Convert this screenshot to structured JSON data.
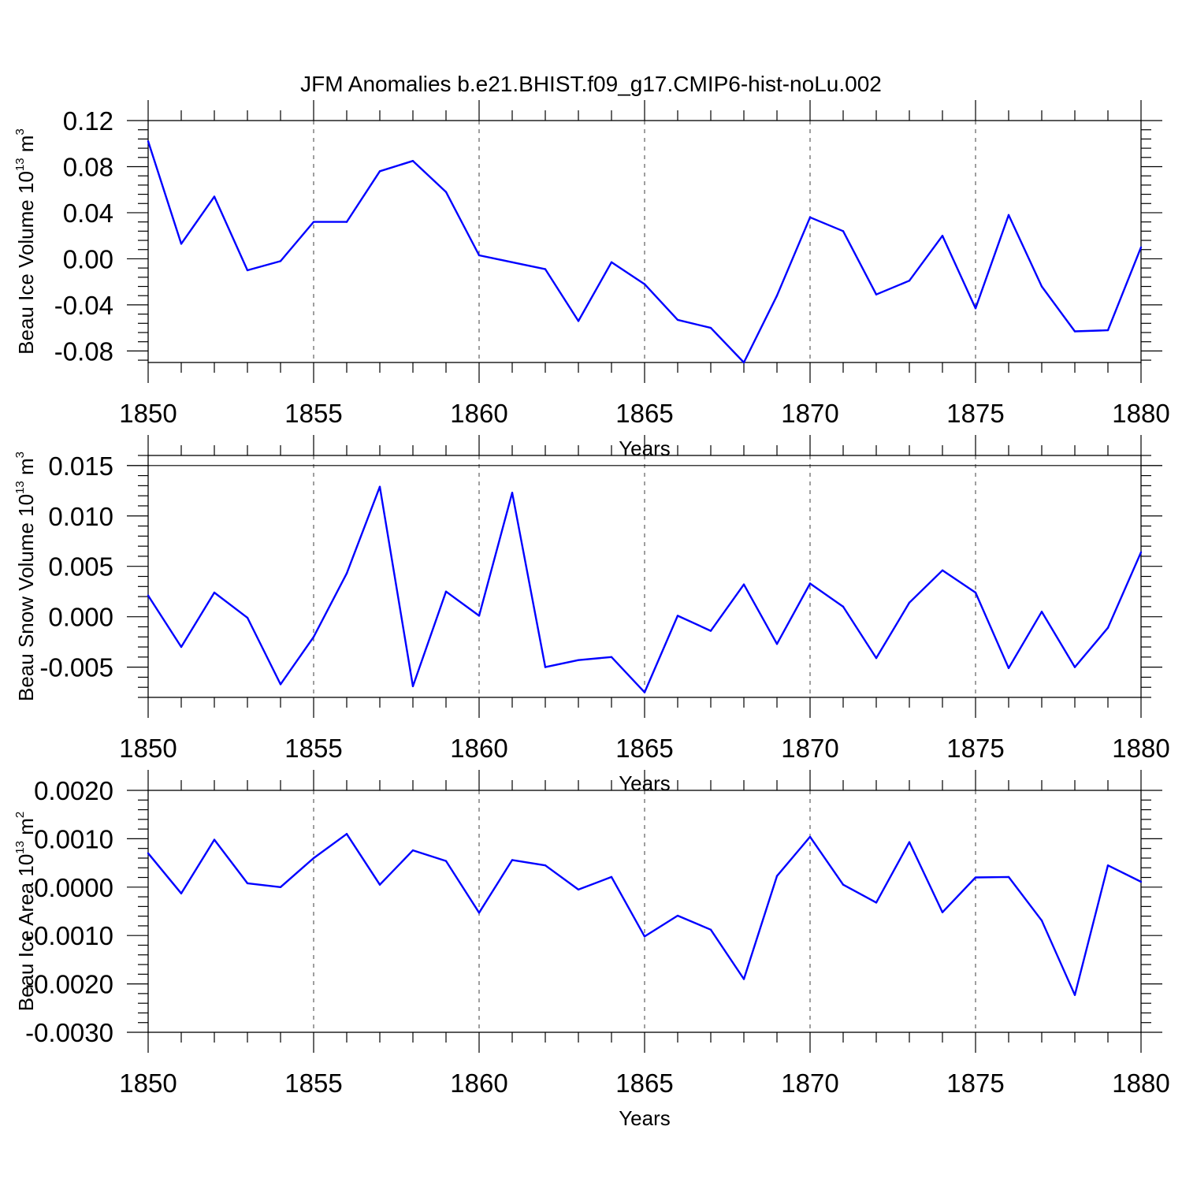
{
  "title": "JFM Anomalies b.e21.BHIST.f09_g17.CMIP6-hist-noLu.002",
  "chart_data": [
    {
      "type": "line",
      "ylabel_main": "Beau Ice Volume 10",
      "ylabel_sup1": "13",
      "ylabel_mid": " m",
      "ylabel_sup2": "3",
      "xlabel": "Years",
      "xlim": [
        1850,
        1880
      ],
      "ylim": [
        -0.09,
        0.12
      ],
      "xticks": [
        1850,
        1855,
        1860,
        1865,
        1870,
        1875,
        1880
      ],
      "yticks": [
        -0.08,
        -0.04,
        0.0,
        0.04,
        0.08,
        0.12
      ],
      "ytick_labels": [
        "-0.08",
        "-0.04",
        "0.00",
        "0.04",
        "0.08",
        "0.12"
      ],
      "grid": "vertical-dashed",
      "color": "#0000ff",
      "x": [
        1850,
        1851,
        1852,
        1853,
        1854,
        1855,
        1856,
        1857,
        1858,
        1859,
        1860,
        1861,
        1862,
        1863,
        1864,
        1865,
        1866,
        1867,
        1868,
        1869,
        1870,
        1871,
        1872,
        1873,
        1874,
        1875,
        1876,
        1877,
        1878,
        1879,
        1880
      ],
      "y": [
        0.102,
        0.013,
        0.054,
        -0.01,
        -0.002,
        0.032,
        0.032,
        0.076,
        0.085,
        0.058,
        0.003,
        -0.003,
        -0.009,
        -0.054,
        -0.003,
        -0.022,
        -0.053,
        -0.06,
        -0.09,
        -0.032,
        0.036,
        0.024,
        -0.031,
        -0.019,
        0.02,
        -0.043,
        0.038,
        -0.024,
        -0.063,
        -0.062,
        0.01
      ]
    },
    {
      "type": "line",
      "ylabel_main": "Beau Snow Volume 10",
      "ylabel_sup1": "13",
      "ylabel_mid": " m",
      "ylabel_sup2": "3",
      "xlabel": "Years",
      "xlim": [
        1850,
        1880
      ],
      "ylim": [
        -0.008,
        0.016
      ],
      "xticks": [
        1850,
        1855,
        1860,
        1865,
        1870,
        1875,
        1880
      ],
      "yticks": [
        -0.005,
        0.0,
        0.005,
        0.01,
        0.015
      ],
      "ytick_labels": [
        "-0.005",
        "0.000",
        "0.005",
        "0.010",
        "0.015"
      ],
      "grid": "vertical-dashed",
      "color": "#0000ff",
      "x": [
        1850,
        1851,
        1852,
        1853,
        1854,
        1855,
        1856,
        1857,
        1858,
        1859,
        1860,
        1861,
        1862,
        1863,
        1864,
        1865,
        1866,
        1867,
        1868,
        1869,
        1870,
        1871,
        1872,
        1873,
        1874,
        1875,
        1876,
        1877,
        1878,
        1879,
        1880
      ],
      "y": [
        0.0021,
        -0.003,
        0.0024,
        -0.0001,
        -0.0067,
        -0.002,
        0.0043,
        0.0129,
        -0.0069,
        0.0025,
        0.0001,
        0.0123,
        -0.005,
        -0.0043,
        -0.004,
        -0.0075,
        0.0001,
        -0.0014,
        0.0032,
        -0.0027,
        0.0033,
        0.001,
        -0.0041,
        0.0014,
        0.0046,
        0.0024,
        -0.0051,
        0.0005,
        -0.005,
        -0.0011,
        0.0064
      ]
    },
    {
      "type": "line",
      "ylabel_main": "Beau Ice Area 10",
      "ylabel_sup1": "13",
      "ylabel_mid": " m",
      "ylabel_sup2": "2",
      "xlabel": "Years",
      "xlim": [
        1850,
        1880
      ],
      "ylim": [
        -0.003,
        0.002
      ],
      "xticks": [
        1850,
        1855,
        1860,
        1865,
        1870,
        1875,
        1880
      ],
      "yticks": [
        -0.003,
        -0.002,
        -0.001,
        0.0,
        0.001,
        0.002
      ],
      "ytick_labels": [
        "-0.0030",
        "-0.0020",
        "-0.0010",
        "0.0000",
        "0.0010",
        "0.0020"
      ],
      "grid": "vertical-dashed",
      "color": "#0000ff",
      "x": [
        1850,
        1851,
        1852,
        1853,
        1854,
        1855,
        1856,
        1857,
        1858,
        1859,
        1860,
        1861,
        1862,
        1863,
        1864,
        1865,
        1866,
        1867,
        1868,
        1869,
        1870,
        1871,
        1872,
        1873,
        1874,
        1875,
        1876,
        1877,
        1878,
        1879,
        1880
      ],
      "y": [
        0.0007,
        -0.00013,
        0.00098,
        8e-05,
        0.0,
        0.0006,
        0.0011,
        5e-05,
        0.00076,
        0.00054,
        -0.00053,
        0.00056,
        0.00045,
        -5e-05,
        0.00021,
        -0.00102,
        -0.00059,
        -0.00088,
        -0.0019,
        0.00023,
        0.00104,
        5e-05,
        -0.00032,
        0.00093,
        -0.00052,
        0.0002,
        0.00021,
        -0.00069,
        -0.00223,
        0.00045,
        0.00011
      ]
    }
  ]
}
